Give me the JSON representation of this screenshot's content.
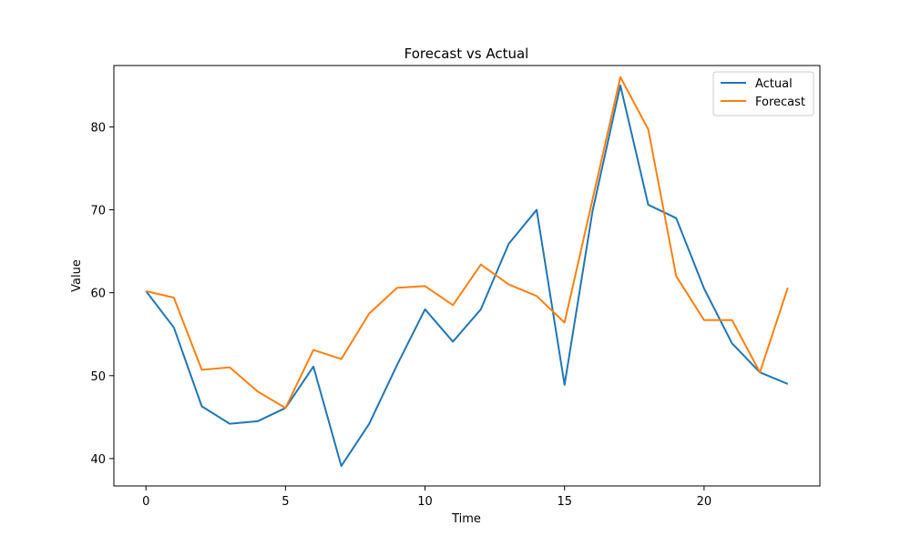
{
  "chart_data": {
    "type": "line",
    "title": "Forecast vs Actual",
    "xlabel": "Time",
    "ylabel": "Value",
    "xlim": [
      -1.15,
      24.15
    ],
    "ylim": [
      36.7,
      87.4
    ],
    "xticks": [
      0,
      5,
      10,
      15,
      20
    ],
    "xtick_labels": [
      "0",
      "5",
      "10",
      "15",
      "20"
    ],
    "yticks": [
      40,
      50,
      60,
      70,
      80
    ],
    "ytick_labels": [
      "40",
      "50",
      "60",
      "70",
      "80"
    ],
    "grid": false,
    "legend": "top-right",
    "x": [
      0,
      1,
      2,
      3,
      4,
      5,
      6,
      7,
      8,
      9,
      10,
      11,
      12,
      13,
      14,
      15,
      16,
      17,
      18,
      19,
      20,
      21,
      22,
      23
    ],
    "series": [
      {
        "name": "Actual",
        "color": "#1f77b4",
        "values": [
          60.2,
          55.8,
          46.3,
          44.2,
          44.5,
          46.1,
          51.1,
          39.1,
          44.2,
          51.3,
          58.0,
          54.1,
          58.0,
          65.9,
          70.0,
          48.9,
          69.8,
          85.0,
          70.6,
          69.0,
          60.5,
          53.9,
          50.4,
          49.0
        ]
      },
      {
        "name": "Forecast",
        "color": "#ff7f0e",
        "values": [
          60.2,
          59.4,
          50.7,
          51.0,
          48.1,
          46.1,
          53.1,
          52.0,
          57.5,
          60.6,
          60.8,
          58.5,
          63.4,
          61.0,
          59.6,
          56.4,
          71.2,
          86.0,
          79.7,
          62.0,
          56.7,
          56.7,
          50.4,
          60.6
        ]
      }
    ]
  }
}
